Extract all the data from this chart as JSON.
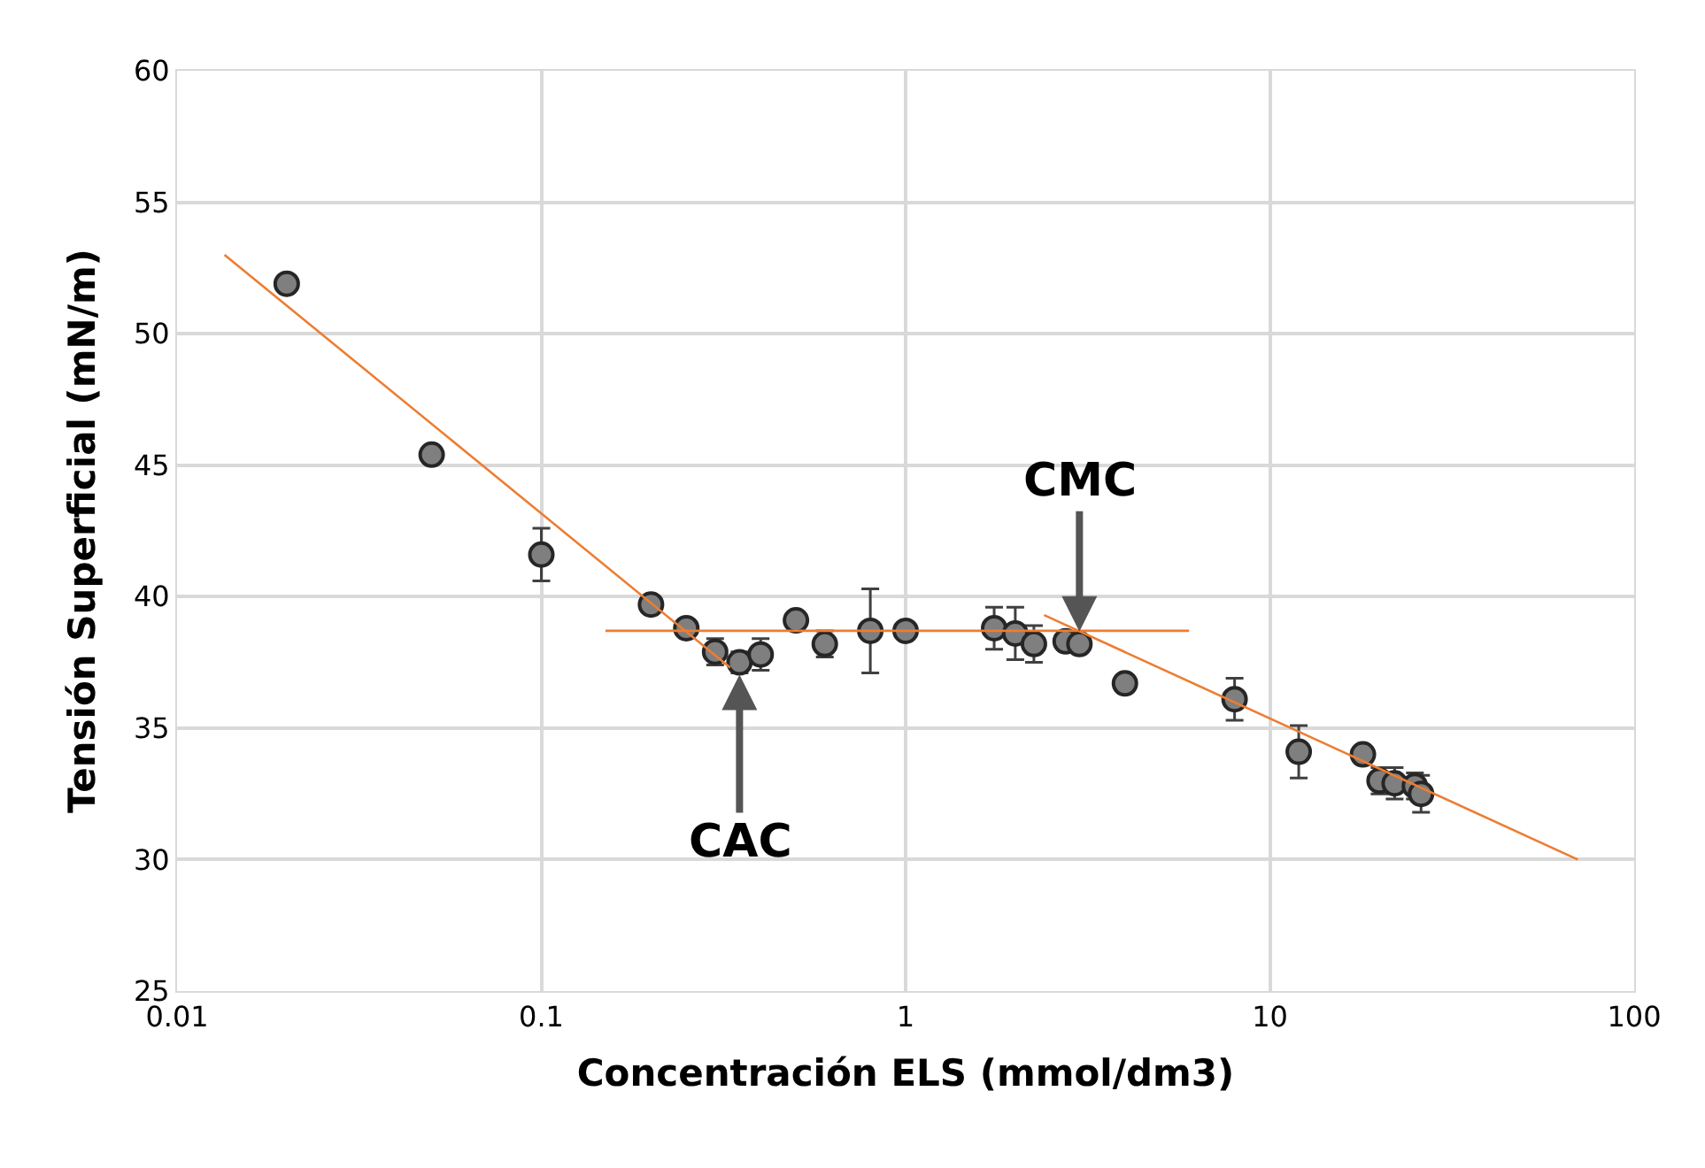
{
  "chart_data": {
    "type": "scatter",
    "xlabel": "Concentración ELS (mmol/dm3)",
    "ylabel": "Tensión Superficial (mN/m)",
    "log": "x",
    "grid": true,
    "marker": "circle",
    "xlim": [
      0.01,
      100
    ],
    "xticks": [
      0.01,
      0.1,
      1,
      10,
      100
    ],
    "ylim": [
      25,
      60
    ],
    "yticks": [
      25,
      30,
      35,
      40,
      45,
      50,
      55,
      60
    ],
    "series": [
      {
        "color": "#7f7f7f",
        "x": [
          0.02,
          0.05,
          0.1,
          0.2,
          0.25,
          0.3,
          0.35,
          0.4,
          0.5,
          0.6,
          0.8,
          1.0,
          1.75,
          2.0,
          2.25,
          2.75,
          3.0,
          4.0,
          8,
          12,
          18,
          20,
          22,
          25,
          26
        ],
        "values": [
          51.9,
          45.4,
          41.6,
          39.7,
          38.8,
          37.9,
          37.5,
          37.8,
          39.1,
          38.2,
          38.7,
          38.7,
          38.8,
          38.6,
          38.2,
          38.3,
          38.2,
          36.7,
          36.1,
          34.1,
          34.0,
          33.0,
          32.9,
          32.8,
          32.5
        ],
        "errors": [
          null,
          null,
          1.0,
          null,
          null,
          0.5,
          0.4,
          0.6,
          null,
          0.5,
          1.6,
          null,
          0.8,
          1.0,
          0.7,
          null,
          null,
          null,
          0.8,
          1.0,
          null,
          0.5,
          0.6,
          0.5,
          0.7
        ]
      },
      {
        "type": "line",
        "marker": "none",
        "color": "#ed7d31",
        "x": [
          0.0135,
          0.33
        ],
        "values": [
          53.0,
          37.3
        ]
      },
      {
        "type": "line",
        "marker": "none",
        "color": "#ed7d31",
        "x": [
          0.15,
          6.0
        ],
        "values": [
          38.7,
          38.7
        ]
      },
      {
        "type": "line",
        "marker": "none",
        "color": "#ed7d31",
        "x": [
          2.4,
          70
        ],
        "values": [
          39.3,
          30.0
        ]
      }
    ],
    "annotations": [
      {
        "text": "CAC",
        "x": 0.35,
        "y": 37.5
      },
      {
        "text": "CMC",
        "x": 3.0,
        "y": 38.2
      }
    ]
  }
}
